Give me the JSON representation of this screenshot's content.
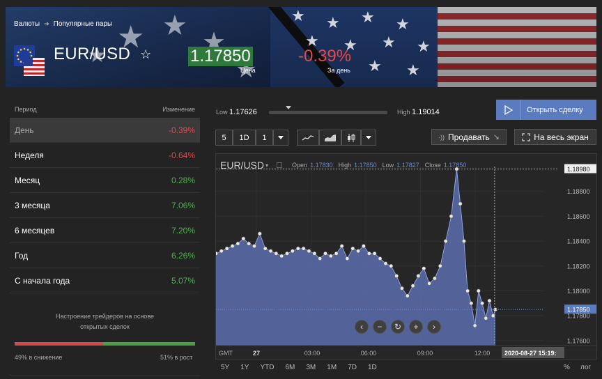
{
  "breadcrumb": {
    "root": "Валюты",
    "current": "Популярные пары"
  },
  "instrument": {
    "title": "EUR/USD",
    "price": "1.17850",
    "price_label": "Цена",
    "change": "-0.39%",
    "change_label": "За день"
  },
  "performance": {
    "head_period": "Период",
    "head_change": "Изменение",
    "rows": [
      {
        "label": "День",
        "value": "-0.39%",
        "sign": "neg"
      },
      {
        "label": "Неделя",
        "value": "-0.64%",
        "sign": "neg"
      },
      {
        "label": "Месяц",
        "value": "0.28%",
        "sign": "pos"
      },
      {
        "label": "3 месяца",
        "value": "7.06%",
        "sign": "pos"
      },
      {
        "label": "6 месяцев",
        "value": "7.20%",
        "sign": "pos"
      },
      {
        "label": "Год",
        "value": "6.26%",
        "sign": "pos"
      },
      {
        "label": "С начала года",
        "value": "5.07%",
        "sign": "pos"
      }
    ]
  },
  "sentiment": {
    "title_line1": "Настроение трейдеров на основе",
    "title_line2": "открытых сделок",
    "down_label": "49% в снижение",
    "up_label": "51% в рост",
    "down_fraction": 0.49
  },
  "range": {
    "low_label": "Low",
    "low": "1.17626",
    "high_label": "High",
    "high": "1.19014"
  },
  "actions": {
    "open_deal": "Открыть сделку",
    "sell": "Продавать",
    "fullscreen": "На весь экран"
  },
  "toolbar": {
    "interval_5": "5",
    "interval_1d": "1D",
    "interval_1": "1"
  },
  "chart_legend": {
    "symbol": "EUR/USD",
    "open_label": "Open",
    "open": "1.17830",
    "high_label": "High",
    "high": "1.17850",
    "low_label": "Low",
    "low": "1.17827",
    "close_label": "Close",
    "close": "1.17850"
  },
  "chart_data": {
    "type": "area",
    "title": "EUR/USD",
    "x_ticks": [
      "27",
      "03:00",
      "06:00",
      "09:00",
      "12:00"
    ],
    "x_tick_positions": [
      0.0,
      0.1667,
      0.3333,
      0.5,
      0.6667
    ],
    "x_range_hours": [
      0,
      18
    ],
    "y_ticks": [
      "1.18980",
      "1.18800",
      "1.18600",
      "1.18400",
      "1.18200",
      "1.18000",
      "1.17800",
      "1.17600"
    ],
    "ylim": [
      1.1756,
      1.19
    ],
    "timezone_label": "GMT",
    "cursor_time": "2020-08-27 15:19:",
    "last_value": "1.17850",
    "high_line_value": "1.18980",
    "series": [
      {
        "x": [
          0.0,
          0.3,
          0.6,
          0.9,
          1.2,
          1.5,
          1.8,
          2.1,
          2.4,
          2.7,
          3.0,
          3.3,
          3.6,
          3.9,
          4.2,
          4.5,
          4.8,
          5.1,
          5.4,
          5.7,
          6.0,
          6.3,
          6.6,
          6.9,
          7.2,
          7.5,
          7.8,
          8.1,
          8.4,
          8.7,
          9.0,
          9.3,
          9.6,
          9.9,
          10.2,
          10.5,
          10.8,
          11.1,
          11.4,
          11.7,
          12.0,
          12.3,
          12.6,
          12.9,
          13.2,
          13.4,
          13.6,
          13.8,
          14.0,
          14.2,
          14.4,
          14.6,
          14.8,
          15.0,
          15.2,
          15.32
        ],
        "y": [
          1.183,
          1.1832,
          1.1834,
          1.1836,
          1.1838,
          1.1842,
          1.1838,
          1.1836,
          1.1846,
          1.1834,
          1.1832,
          1.183,
          1.1828,
          1.183,
          1.1832,
          1.1834,
          1.1834,
          1.1832,
          1.183,
          1.1826,
          1.183,
          1.1828,
          1.183,
          1.1836,
          1.1826,
          1.1834,
          1.1832,
          1.1836,
          1.183,
          1.183,
          1.1826,
          1.1822,
          1.182,
          1.1812,
          1.1802,
          1.1796,
          1.1804,
          1.1812,
          1.1818,
          1.1806,
          1.181,
          1.182,
          1.184,
          1.186,
          1.1898,
          1.187,
          1.184,
          1.18,
          1.179,
          1.1772,
          1.18,
          1.179,
          1.1778,
          1.1792,
          1.178,
          1.1785
        ]
      }
    ]
  },
  "zoom": {
    "prev": "‹",
    "minus": "−",
    "reset": "↻",
    "plus": "+",
    "next": "›"
  },
  "periods": {
    "items": [
      "5Y",
      "1Y",
      "YTD",
      "6M",
      "3M",
      "1M",
      "7D",
      "1D"
    ],
    "percent": "%",
    "log": "лог"
  },
  "colors": {
    "accent": "#5a7bc0",
    "negative": "#e04a4a",
    "positive": "#4fb04f",
    "area_fill": "#5c6fae",
    "price_box": "#2f7a3b"
  }
}
